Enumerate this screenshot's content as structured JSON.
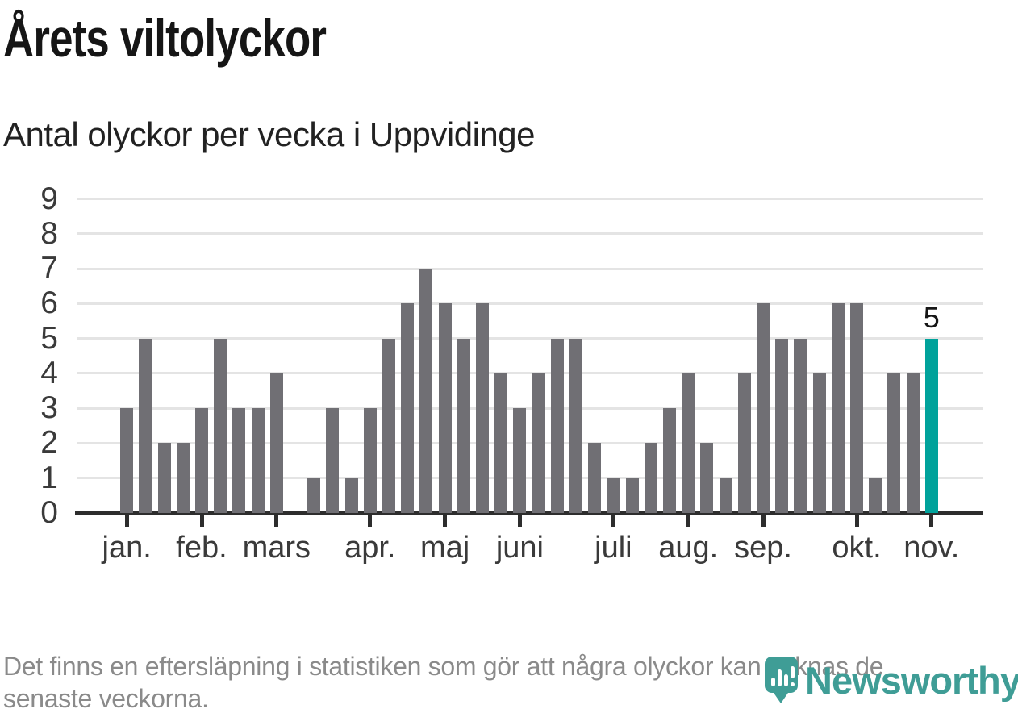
{
  "title": "Årets viltolyckor",
  "subtitle": "Antal olyckor per vecka i Uppvidinge",
  "footnote_line1": "Det finns en eftersläpning i statistiken som gör att några olyckor kan saknas de",
  "footnote_line2": "senaste veckorna.",
  "logo": {
    "text": "Newsworthy"
  },
  "chart_data": {
    "type": "bar",
    "title": "Årets viltolyckor",
    "subtitle": "Antal olyckor per vecka i Uppvidinge",
    "xlabel": "",
    "ylabel": "",
    "ylim": [
      0,
      9
    ],
    "yticks": [
      0,
      1,
      2,
      3,
      4,
      5,
      6,
      7,
      8,
      9
    ],
    "grid": true,
    "values": [
      3,
      5,
      2,
      2,
      3,
      5,
      3,
      3,
      4,
      0,
      1,
      3,
      1,
      3,
      5,
      6,
      7,
      6,
      5,
      6,
      4,
      3,
      4,
      5,
      5,
      2,
      1,
      1,
      2,
      3,
      4,
      2,
      1,
      4,
      6,
      5,
      5,
      4,
      6,
      6,
      1,
      4,
      4,
      5
    ],
    "month_ticks": [
      {
        "label": "jan.",
        "week_index": 0
      },
      {
        "label": "feb.",
        "week_index": 4
      },
      {
        "label": "mars",
        "week_index": 8
      },
      {
        "label": "apr.",
        "week_index": 13
      },
      {
        "label": "maj",
        "week_index": 17
      },
      {
        "label": "juni",
        "week_index": 21
      },
      {
        "label": "juli",
        "week_index": 26
      },
      {
        "label": "aug.",
        "week_index": 30
      },
      {
        "label": "sep.",
        "week_index": 34
      },
      {
        "label": "okt.",
        "week_index": 39
      },
      {
        "label": "nov.",
        "week_index": 43
      }
    ],
    "highlight_index": 43,
    "highlight_label": "5",
    "colors": {
      "bar": "#706f74",
      "highlight": "#00a29b",
      "grid": "#e4e4e4",
      "axis": "#2d2d2d",
      "tick_label": "#3a3a3a",
      "logo_teal": "#3f9d96"
    }
  }
}
